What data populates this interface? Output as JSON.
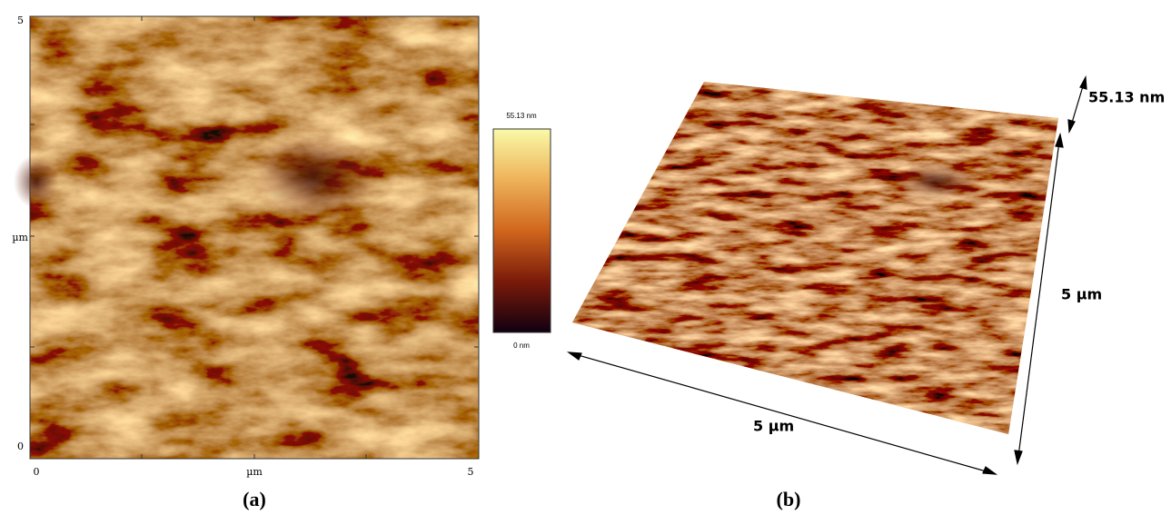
{
  "panel_a": {
    "y_axis_labels": [
      "5",
      "µm",
      "0"
    ],
    "x_axis_labels": [
      "0",
      "µm",
      "5"
    ],
    "colorbar": {
      "max_label": "55.13 nm",
      "min_label": "0 nm"
    },
    "caption": "(a)"
  },
  "panel_b": {
    "height_label": "55.13 nm",
    "depth_label": "5 µm",
    "width_label": "5 µm",
    "caption": "(b)"
  }
}
